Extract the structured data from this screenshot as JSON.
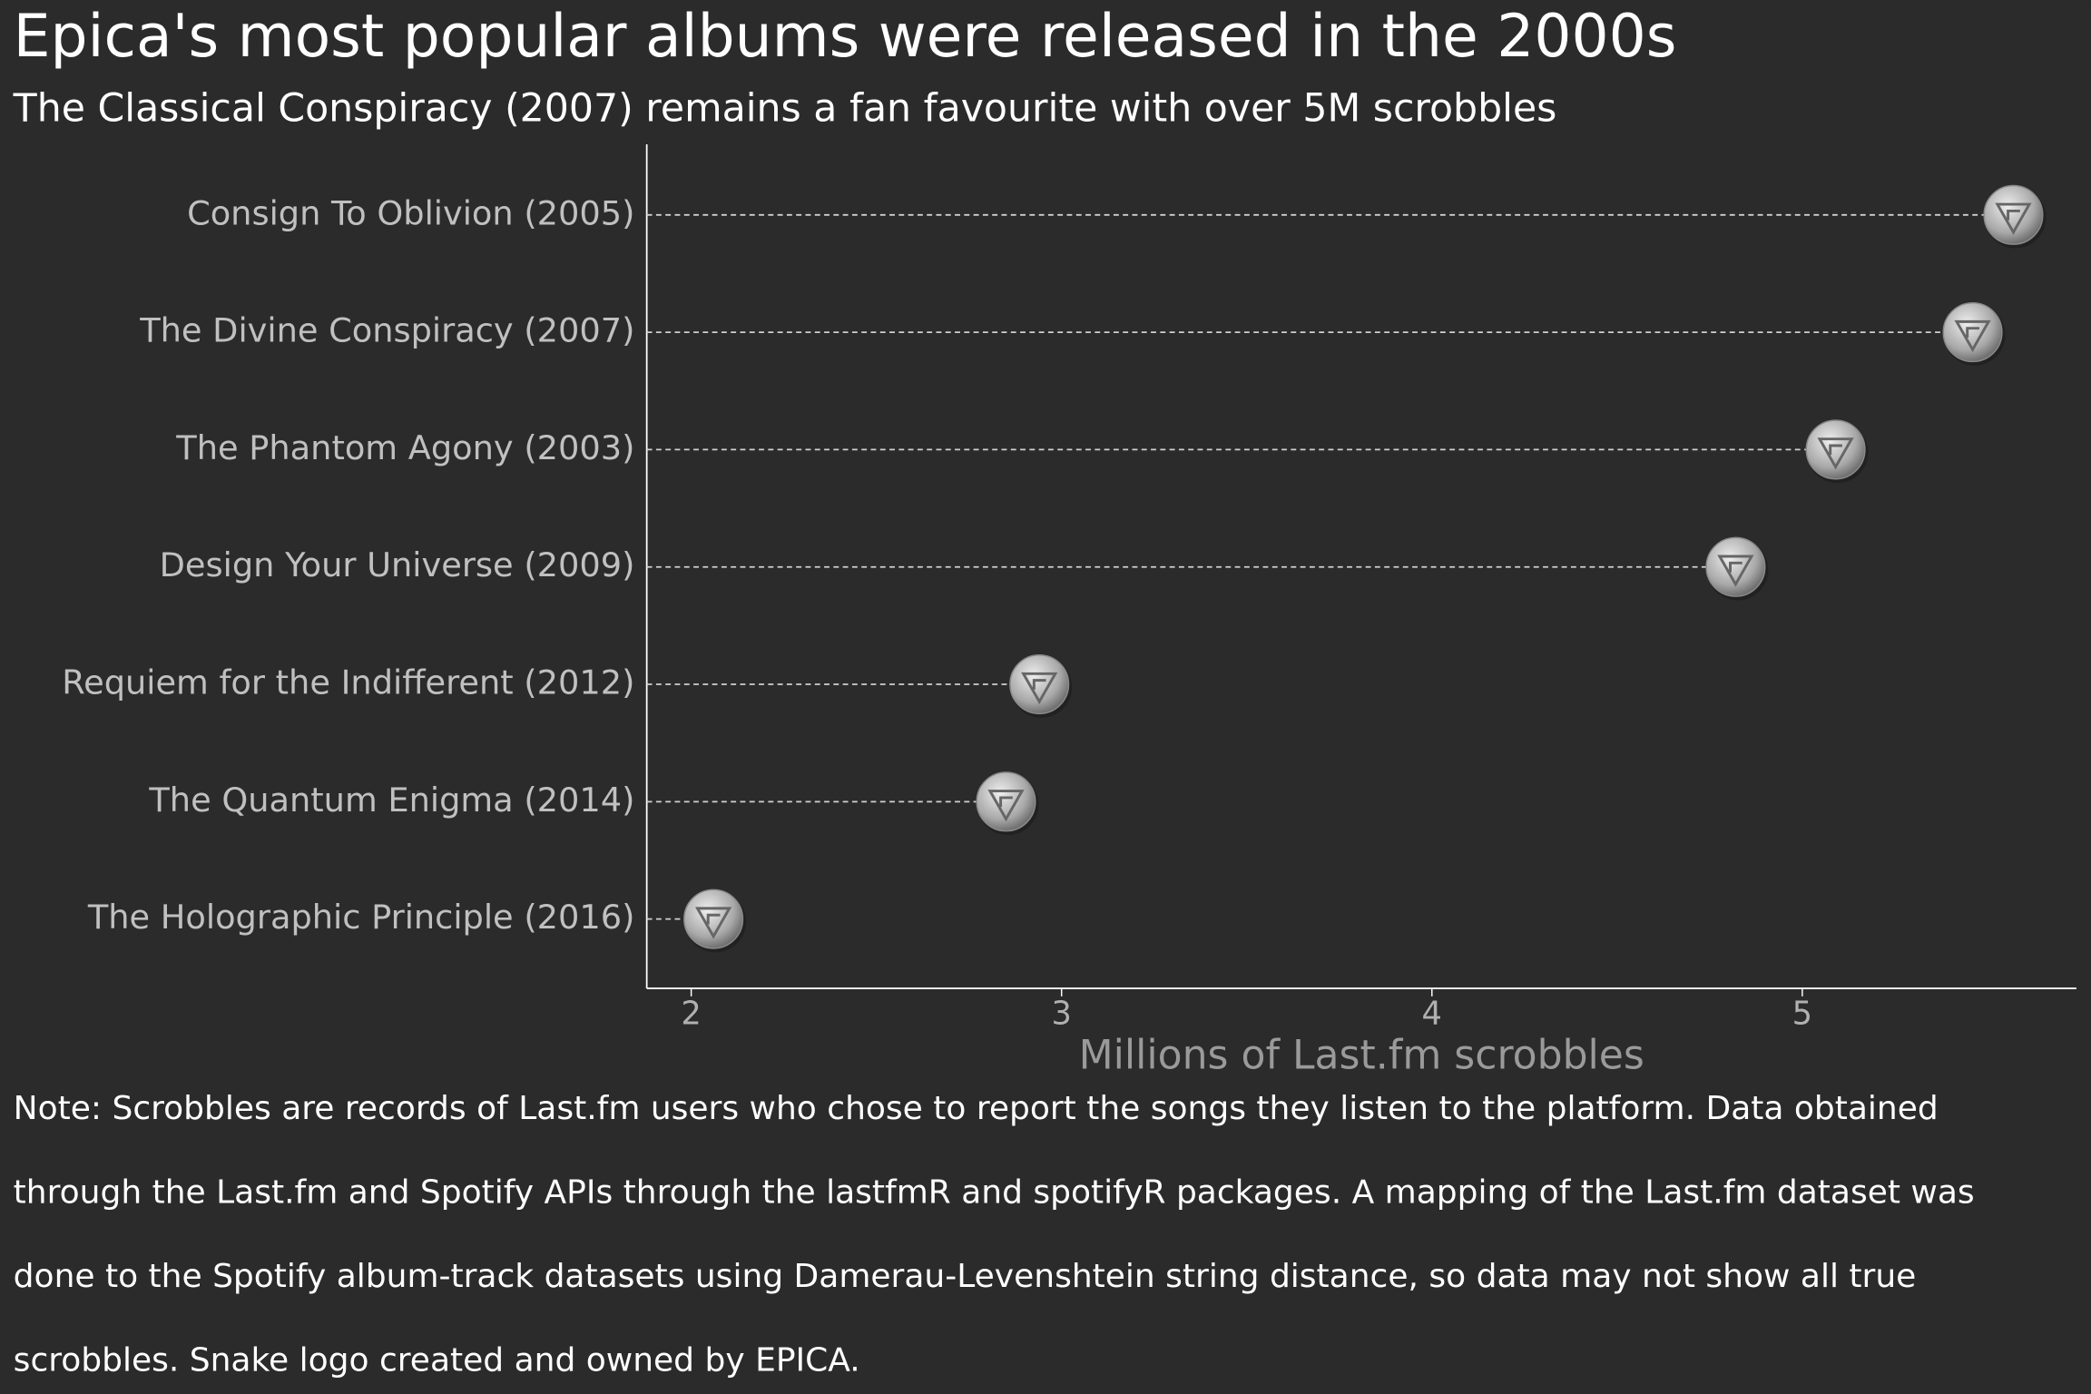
{
  "chart_data": {
    "type": "lollipop",
    "title": "Epica's most popular albums were released in the 2000s",
    "subtitle": "The Classical Conspiracy (2007) remains a fan favourite with over 5M scrobbles",
    "x_label": "Millions of Last.fm scrobbles",
    "categories": [
      "Consign To Oblivion (2005)",
      "The Divine Conspiracy (2007)",
      "The Phantom Agony (2003)",
      "Design Your Universe (2009)",
      "Requiem for the Indifferent (2012)",
      "The Quantum Enigma (2014)",
      "The Holographic Principle (2016)"
    ],
    "values": [
      5.57,
      5.46,
      5.09,
      4.82,
      2.94,
      2.85,
      2.06
    ],
    "color": "#b0b0b0",
    "xlim": [
      1.88,
      5.74
    ],
    "xticks": [
      2,
      3,
      4,
      5
    ],
    "note": [
      "Note: Scrobbles are records of Last.fm users who chose to report the songs they listen to the platform. Data obtained",
      "through the Last.fm and Spotify APIs through the lastfmR and spotifyR packages. A mapping of the Last.fm dataset was",
      "done to the Spotify album-track datasets using Damerau-Levenshtein string distance, so data may not show all true",
      "scrobbles. Snake logo created and owned by EPICA."
    ]
  }
}
